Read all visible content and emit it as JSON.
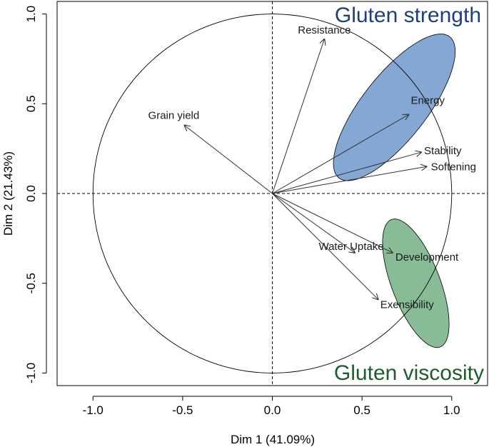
{
  "chart_data": {
    "type": "scatter",
    "subtype": "pca-correlation-circle",
    "xlabel": "Dim 1 (41.09%)",
    "ylabel": "Dim 2 (21.43%)",
    "xlim": [
      -1.2,
      1.2
    ],
    "ylim": [
      -1.07,
      1.07
    ],
    "xticks": [
      "-1.0",
      "-0.5",
      "0.0",
      "0.5",
      "1.0"
    ],
    "yticks": [
      "-1.0",
      "-0.5",
      "0.0",
      "0.5",
      "1.0"
    ],
    "grid": false,
    "unit_circle": true,
    "reference_lines": [
      "x=0 dashed",
      "y=0 dashed"
    ],
    "variables": [
      {
        "name": "Resistance",
        "x": 0.29,
        "y": 0.86
      },
      {
        "name": "Grain yield",
        "x": -0.49,
        "y": 0.38
      },
      {
        "name": "Energy",
        "x": 0.76,
        "y": 0.44
      },
      {
        "name": "Stability",
        "x": 0.83,
        "y": 0.23
      },
      {
        "name": "Softening",
        "x": 0.86,
        "y": 0.15
      },
      {
        "name": "Water Uptake",
        "x": 0.46,
        "y": -0.33
      },
      {
        "name": "Development",
        "x": 0.67,
        "y": -0.33
      },
      {
        "name": "Exensibility",
        "x": 0.59,
        "y": -0.59
      }
    ],
    "groups": [
      {
        "name": "Gluten strength",
        "color": "#5b8bc4",
        "label_color": "#1f3f7a",
        "members": [
          "Resistance",
          "Energy",
          "Stability",
          "Softening"
        ]
      },
      {
        "name": "Gluten viscosity",
        "color": "#5fa574",
        "label_color": "#1f5c2e",
        "members": [
          "Development",
          "Exensibility"
        ]
      }
    ]
  }
}
